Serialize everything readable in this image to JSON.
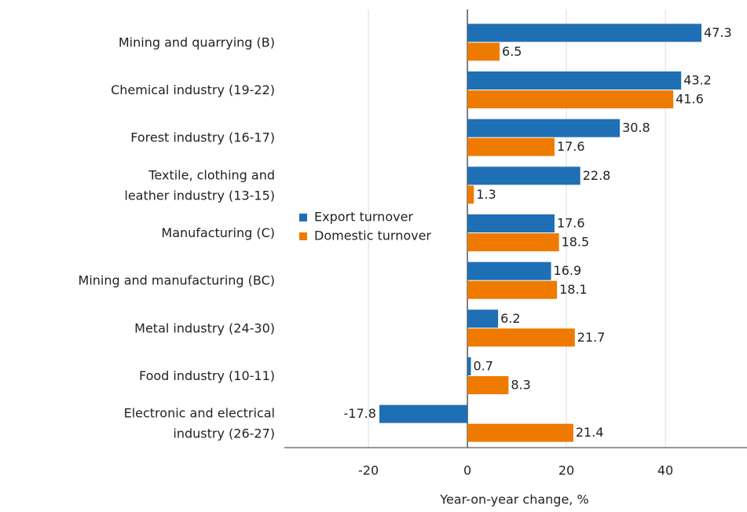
{
  "chart_data": {
    "type": "hbar",
    "categories": [
      "Mining and quarrying (B)",
      "Chemical industry (19-22)",
      "Forest industry (16-17)",
      "Textile, clothing and\nleather industry (13-15)",
      "Manufacturing (C)",
      "Mining and manufacturing (BC)",
      "Metal industry (24-30)",
      "Food industry (10-11)",
      "Electronic and electrical\nindustry (26-27)"
    ],
    "series": [
      {
        "name": "Export turnover",
        "color": "#1f6fb5",
        "values": [
          47.3,
          43.2,
          30.8,
          22.8,
          17.6,
          16.9,
          6.2,
          0.7,
          -17.8
        ]
      },
      {
        "name": "Domestic turnover",
        "color": "#ee7a00",
        "values": [
          6.5,
          41.6,
          17.6,
          1.3,
          18.5,
          18.1,
          21.7,
          8.3,
          21.4
        ]
      }
    ],
    "xlabel": "Year-on-year change, %",
    "xlim": [
      -37,
      56.5
    ],
    "xticks": [
      -20,
      0,
      20,
      40
    ],
    "grid": true
  }
}
